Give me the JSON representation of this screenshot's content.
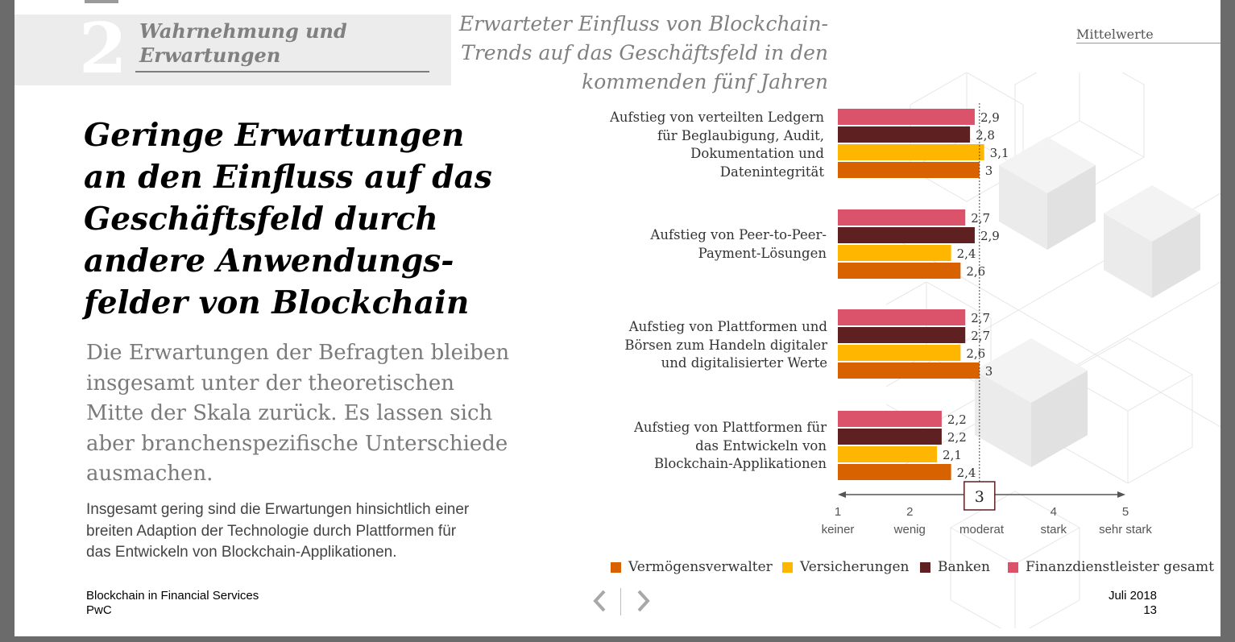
{
  "section": {
    "number": "2",
    "title": "Wahrnehmung und\nErwartungen"
  },
  "headline": "Geringe Erwartungen\nan den Einfluss auf das\nGeschäftsfeld durch\nandere Anwendungs-\nfelder von Blockchain",
  "subheadline": "Die Erwartungen der Befragten bleiben\ninsgesamt unter der theoretischen\nMitte der Skala zurück. Es lassen sich\naber branchenspezifische Unterschiede\nausmachen.",
  "body": "Insgesamt gering sind die Erwartungen hinsichtlich einer\nbreiten Adaption der Technologie durch Plattformen für\ndas Entwickeln von Blockchain-Applikationen.",
  "footer": {
    "left": "Blockchain in Financial Services\nPwC",
    "right": "Juli 2018\n13"
  },
  "chart_header": {
    "title": "Erwarteter Einfluss von Blockchain-\nTrends auf das Geschäftsfeld in den\nkommenden fünf Jahren",
    "note": "Mittelwerte"
  },
  "colors": {
    "finanz": "#db536a",
    "banken": "#5e2020",
    "versicherungen": "#ffb600",
    "verm": "#d96200",
    "text": "#333333",
    "axis": "#555555"
  },
  "chart_data": {
    "type": "bar",
    "orientation": "horizontal",
    "title": "Erwarteter Einfluss von Blockchain-Trends auf das Geschäftsfeld in den kommenden fünf Jahren",
    "note": "Mittelwerte",
    "categories": [
      "Aufstieg von verteilten Ledgern\nfür Beglaubigung, Audit,\nDokumentation und\nDatenintegrität",
      "Aufstieg von Peer-to-Peer-\nPayment-Lösungen",
      "Aufstieg von Plattformen und\nBörsen zum Handeln digitaler\nund digitalisierter Werte",
      "Aufstieg von Plattformen für\ndas Entwickeln von\nBlockchain-Applikationen"
    ],
    "series": [
      {
        "name": "Finanzdienstleister gesamt",
        "color": "#db536a",
        "values": [
          2.9,
          2.7,
          2.7,
          2.2
        ],
        "labels": [
          "2,9",
          "2,7",
          "2,7",
          "2,2"
        ]
      },
      {
        "name": "Banken",
        "color": "#5e2020",
        "values": [
          2.8,
          2.9,
          2.7,
          2.2
        ],
        "labels": [
          "2,8",
          "2,9",
          "2,7",
          "2,2"
        ]
      },
      {
        "name": "Versicherungen",
        "color": "#ffb600",
        "values": [
          3.1,
          2.4,
          2.6,
          2.1
        ],
        "labels": [
          "3,1",
          "2,4",
          "2,6",
          "2,1"
        ]
      },
      {
        "name": "Vermögensverwalter",
        "color": "#d96200",
        "values": [
          3.0,
          2.6,
          3.0,
          2.4
        ],
        "labels": [
          "3",
          "2,6",
          "3",
          "2,4"
        ]
      }
    ],
    "legend_order": [
      "Vermögensverwalter",
      "Versicherungen",
      "Banken",
      "Finanzdienstleister gesamt"
    ],
    "axis": {
      "min": 1,
      "max": 5,
      "ticks": [
        {
          "value": 1,
          "number": "1",
          "label": "keiner"
        },
        {
          "value": 2,
          "number": "2",
          "label": "wenig"
        },
        {
          "value": 3,
          "number": "3",
          "label": "moderat"
        },
        {
          "value": 4,
          "number": "4",
          "label": "stark"
        },
        {
          "value": 5,
          "number": "5",
          "label": "sehr stark"
        }
      ],
      "reference_line": 3,
      "reference_label": "3"
    }
  }
}
